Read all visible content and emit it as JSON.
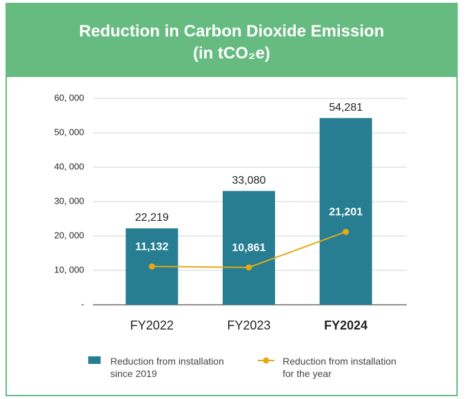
{
  "chart_data": {
    "type": "bar_line",
    "title": "Reduction in Carbon Dioxide Emission",
    "subtitle": "(in tCO₂e)",
    "categories": [
      "FY2022",
      "FY2023",
      "FY2024"
    ],
    "series": [
      {
        "name": "Reduction from installation since 2019",
        "type": "bar",
        "color": "#277d91",
        "values": [
          22219,
          33080,
          54281
        ],
        "value_labels": [
          "22,219",
          "33,080",
          "54,281"
        ]
      },
      {
        "name": "Reduction from installation for the year",
        "type": "line",
        "color": "#e6a914",
        "values": [
          11132,
          10861,
          21201
        ],
        "value_labels": [
          "11,132",
          "10,861",
          "21,201"
        ]
      }
    ],
    "ylim": [
      0,
      60000
    ],
    "yticks": [
      {
        "value": 0,
        "label": "-"
      },
      {
        "value": 10000,
        "label": "10, 000"
      },
      {
        "value": 20000,
        "label": "20, 000"
      },
      {
        "value": 30000,
        "label": "30, 000"
      },
      {
        "value": 40000,
        "label": "40, 000"
      },
      {
        "value": 50000,
        "label": "50, 000"
      },
      {
        "value": 60000,
        "label": "60, 000"
      }
    ],
    "grid": true
  }
}
